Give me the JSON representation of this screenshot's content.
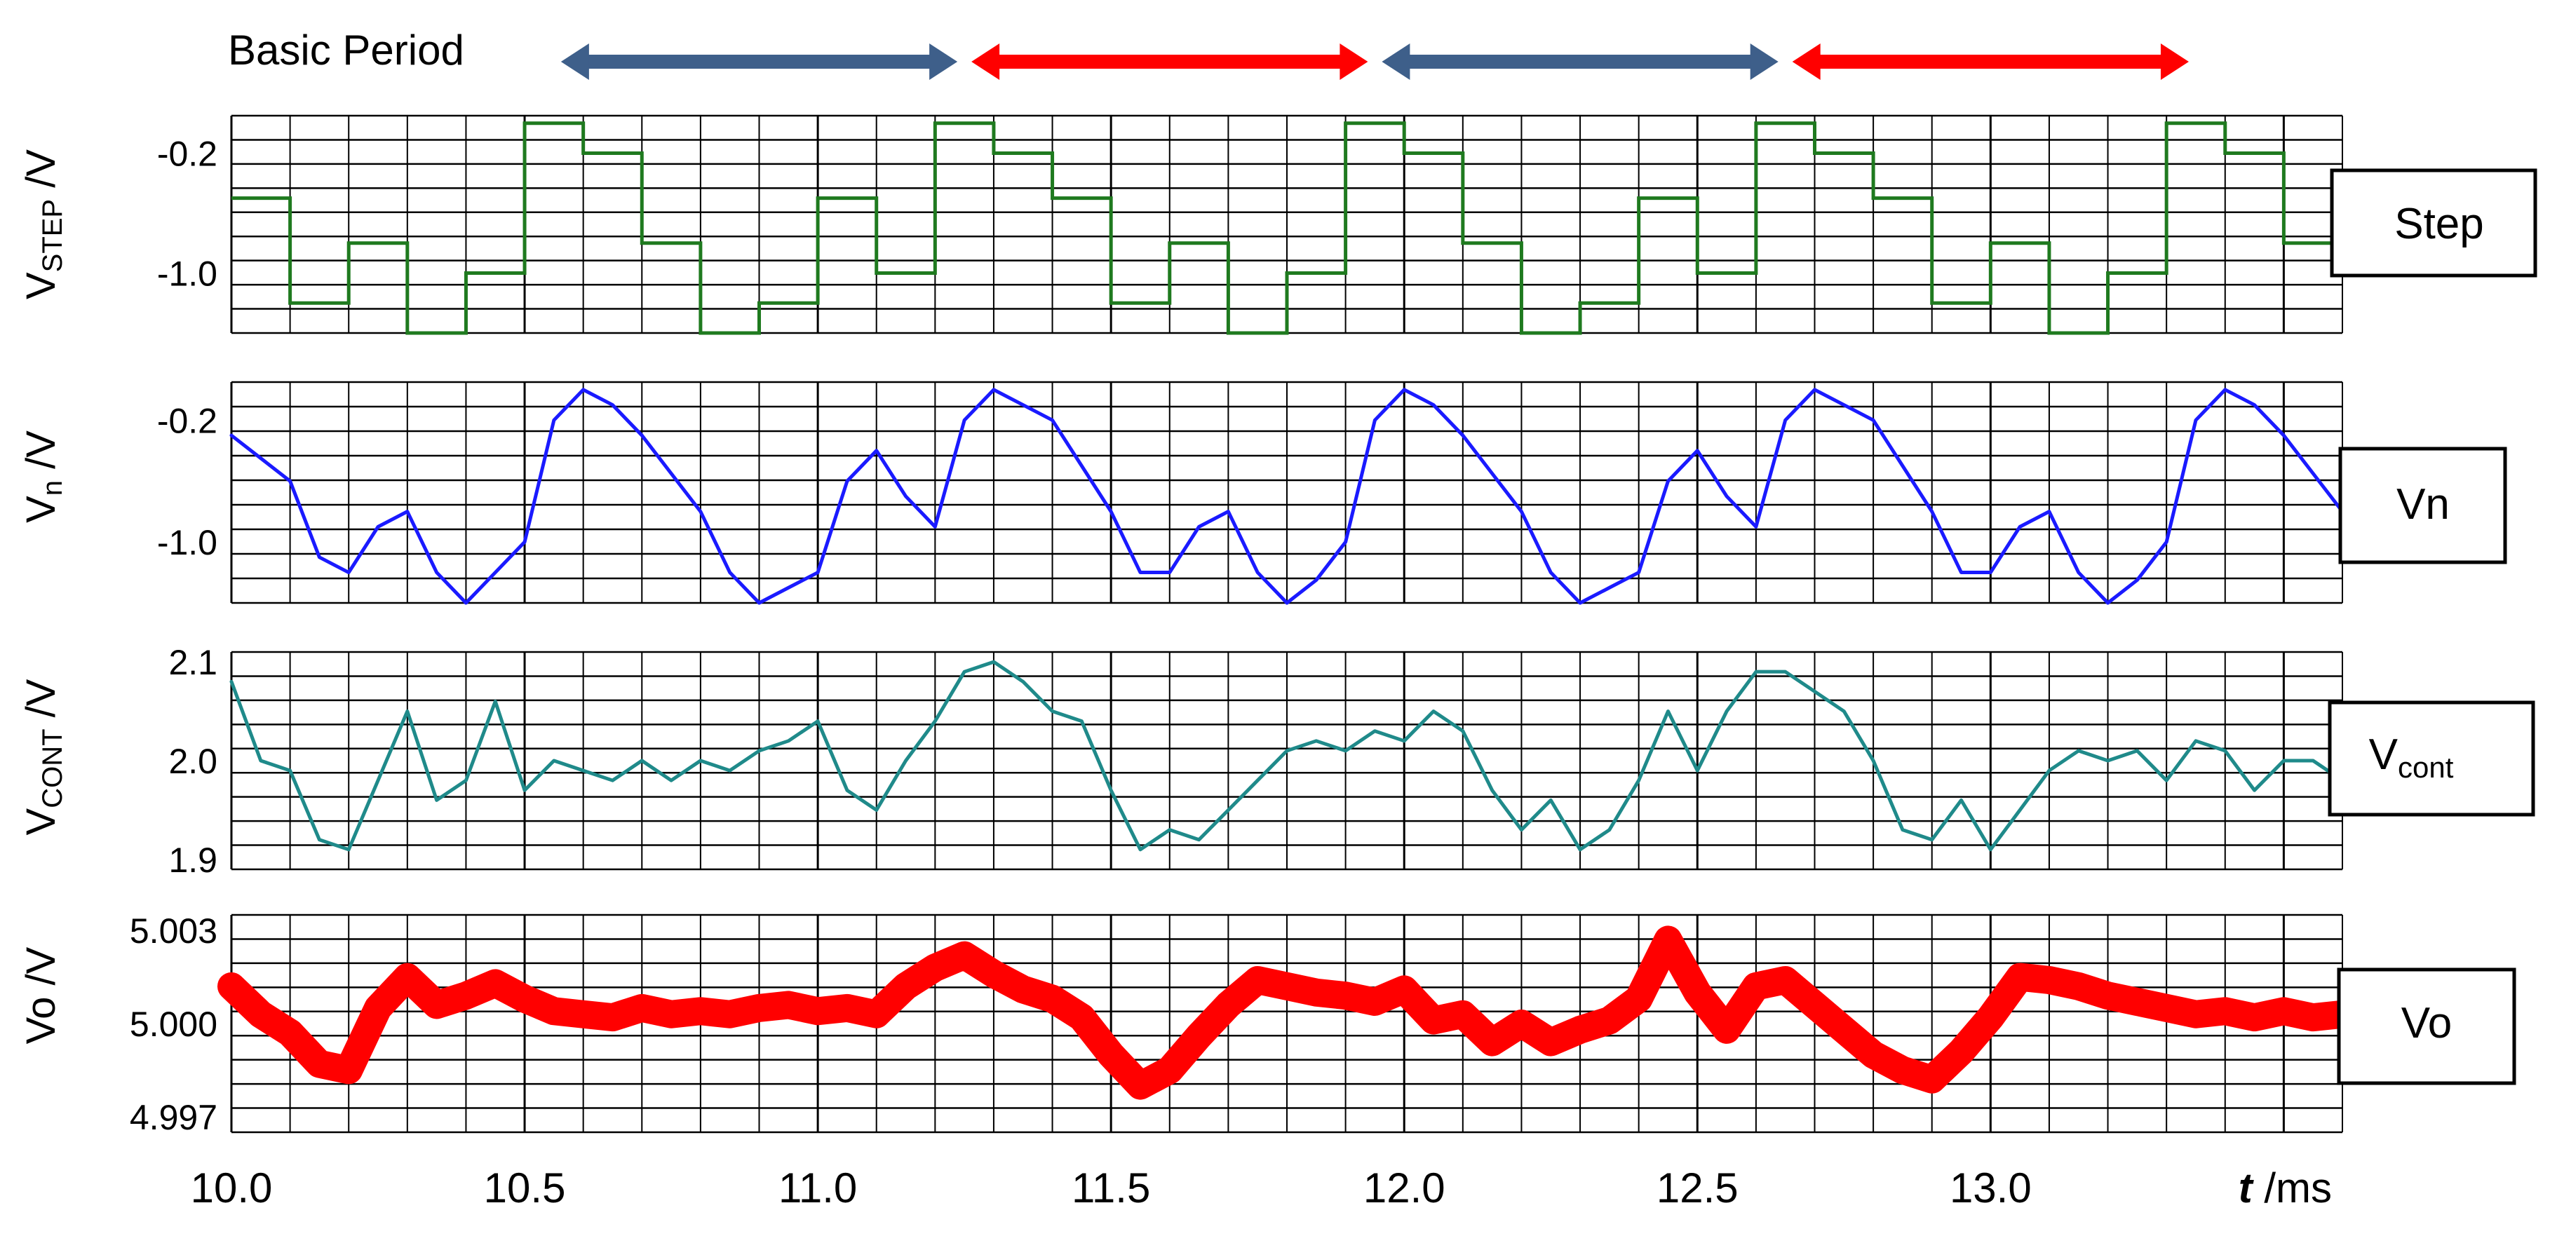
{
  "header": {
    "label": "Basic Period"
  },
  "period_arrows": {
    "segments": [
      {
        "start": 10.55,
        "end": 11.25,
        "color": "#3e5f8a"
      },
      {
        "start": 11.25,
        "end": 11.95,
        "color": "#ff0000"
      },
      {
        "start": 11.95,
        "end": 12.65,
        "color": "#3e5f8a"
      },
      {
        "start": 12.65,
        "end": 13.35,
        "color": "#ff0000"
      }
    ]
  },
  "colors": {
    "step": "#1f7a1f",
    "vn": "#1a1aff",
    "vcont": "#1f8a8a",
    "vo": "#ff0000",
    "grid": "#000000"
  },
  "x_axis": {
    "ticks": [
      "10.0",
      "10.5",
      "11.0",
      "11.5",
      "12.0",
      "12.5",
      "13.0"
    ],
    "tick_values": [
      10.0,
      10.5,
      11.0,
      11.5,
      12.0,
      12.5,
      13.0
    ],
    "label_symbol": "t",
    "label_unit": " /ms"
  },
  "panels": {
    "step": {
      "ylabel_main": "V",
      "ylabel_sub": "STEP",
      "ylabel_unit": " /V",
      "ticks": [
        {
          "label": "-0.2",
          "value": -0.2
        },
        {
          "label": "-1.0",
          "value": -1.0
        }
      ],
      "tag": "Step"
    },
    "vn": {
      "ylabel_main": "V",
      "ylabel_sub": "n",
      "ylabel_unit": " /V",
      "ticks": [
        {
          "label": "-0.2",
          "value": -0.2
        },
        {
          "label": "-1.0",
          "value": -1.0
        }
      ],
      "tag": "Vn"
    },
    "vcont": {
      "ylabel_main": "V",
      "ylabel_sub": "CONT",
      "ylabel_unit": " /V",
      "ticks": [
        {
          "label": "2.1",
          "value": 2.1
        },
        {
          "label": "2.0",
          "value": 2.0
        },
        {
          "label": "1.9",
          "value": 1.9
        }
      ],
      "tag_main": "V",
      "tag_sub": "cont"
    },
    "vo": {
      "ylabel_main": "Vo",
      "ylabel_unit": " /V",
      "ticks": [
        {
          "label": "5.003",
          "value": 5.003
        },
        {
          "label": "5.000",
          "value": 5.0
        },
        {
          "label": "4.997",
          "value": 4.997
        }
      ],
      "tag": "Vo"
    }
  },
  "chart_data": [
    {
      "type": "line",
      "name": "Step",
      "x": [
        10.0,
        10.1,
        10.2,
        10.3,
        10.4,
        10.5,
        10.6,
        10.7,
        10.8,
        10.9,
        11.0,
        11.1,
        11.2,
        11.3,
        11.4,
        11.5,
        11.6,
        11.7,
        11.8,
        11.9,
        12.0,
        12.1,
        12.2,
        12.3,
        12.4,
        12.5,
        12.6,
        12.7,
        12.8,
        12.9,
        13.0,
        13.1,
        13.2,
        13.3,
        13.4,
        13.5
      ],
      "values": [
        -0.5,
        -1.2,
        -0.8,
        -1.4,
        -1.0,
        0.0,
        -0.2,
        -0.8,
        -1.4,
        -1.2,
        -0.5,
        -1.0,
        0.0,
        -0.2,
        -0.5,
        -1.2,
        -0.8,
        -1.4,
        -1.0,
        0.0,
        -0.2,
        -0.8,
        -1.4,
        -1.2,
        -0.5,
        -1.0,
        0.0,
        -0.2,
        -0.5,
        -1.2,
        -0.8,
        -1.4,
        -1.0,
        0.0,
        -0.2,
        -0.8
      ],
      "xlim": [
        10.0,
        13.6
      ],
      "ylim": [
        -1.4,
        0.05
      ]
    },
    {
      "type": "line",
      "name": "Vn",
      "x": [
        10.0,
        10.05,
        10.1,
        10.15,
        10.2,
        10.25,
        10.3,
        10.35,
        10.4,
        10.45,
        10.5,
        10.55,
        10.6,
        10.65,
        10.7,
        10.75,
        10.8,
        10.85,
        10.9,
        10.95,
        11.0,
        11.05,
        11.1,
        11.15,
        11.2,
        11.25,
        11.3,
        11.35,
        11.4,
        11.45,
        11.5,
        11.55,
        11.6,
        11.65,
        11.7,
        11.75,
        11.8,
        11.85,
        11.9,
        11.95,
        12.0,
        12.05,
        12.1,
        12.15,
        12.2,
        12.25,
        12.3,
        12.35,
        12.4,
        12.45,
        12.5,
        12.55,
        12.6,
        12.65,
        12.7,
        12.75,
        12.8,
        12.85,
        12.9,
        12.95,
        13.0,
        13.05,
        13.1,
        13.15,
        13.2,
        13.25,
        13.3,
        13.35,
        13.4,
        13.45,
        13.5,
        13.55,
        13.6
      ],
      "values": [
        -0.3,
        -0.45,
        -0.6,
        -1.1,
        -1.2,
        -0.9,
        -0.8,
        -1.2,
        -1.4,
        -1.2,
        -1.0,
        -0.2,
        0.0,
        -0.1,
        -0.3,
        -0.55,
        -0.8,
        -1.2,
        -1.4,
        -1.3,
        -1.2,
        -0.6,
        -0.4,
        -0.7,
        -0.9,
        -0.2,
        0.0,
        -0.1,
        -0.2,
        -0.5,
        -0.8,
        -1.2,
        -1.2,
        -0.9,
        -0.8,
        -1.2,
        -1.4,
        -1.25,
        -1.0,
        -0.2,
        0.0,
        -0.1,
        -0.3,
        -0.55,
        -0.8,
        -1.2,
        -1.4,
        -1.3,
        -1.2,
        -0.6,
        -0.4,
        -0.7,
        -0.9,
        -0.2,
        0.0,
        -0.1,
        -0.2,
        -0.5,
        -0.8,
        -1.2,
        -1.2,
        -0.9,
        -0.8,
        -1.2,
        -1.4,
        -1.25,
        -1.0,
        -0.2,
        0.0,
        -0.1,
        -0.3,
        -0.55,
        -0.8
      ],
      "xlim": [
        10.0,
        13.6
      ],
      "ylim": [
        -1.4,
        0.05
      ]
    },
    {
      "type": "line",
      "name": "Vcont",
      "x": [
        10.0,
        10.05,
        10.1,
        10.15,
        10.2,
        10.25,
        10.3,
        10.35,
        10.4,
        10.45,
        10.5,
        10.55,
        10.6,
        10.65,
        10.7,
        10.75,
        10.8,
        10.85,
        10.9,
        10.95,
        11.0,
        11.05,
        11.1,
        11.15,
        11.2,
        11.25,
        11.3,
        11.35,
        11.4,
        11.45,
        11.5,
        11.55,
        11.6,
        11.65,
        11.7,
        11.75,
        11.8,
        11.85,
        11.9,
        11.95,
        12.0,
        12.05,
        12.1,
        12.15,
        12.2,
        12.25,
        12.3,
        12.35,
        12.4,
        12.45,
        12.5,
        12.55,
        12.6,
        12.65,
        12.7,
        12.75,
        12.8,
        12.85,
        12.9,
        12.95,
        13.0,
        13.05,
        13.1,
        13.15,
        13.2,
        13.25,
        13.3,
        13.35,
        13.4,
        13.45,
        13.5,
        13.55,
        13.6
      ],
      "values": [
        2.08,
        2.0,
        1.99,
        1.92,
        1.91,
        1.98,
        2.05,
        1.96,
        1.98,
        2.06,
        1.97,
        2.0,
        1.99,
        1.98,
        2.0,
        1.98,
        2.0,
        1.99,
        2.01,
        2.02,
        2.04,
        1.97,
        1.95,
        2.0,
        2.04,
        2.09,
        2.1,
        2.08,
        2.05,
        2.04,
        1.97,
        1.91,
        1.93,
        1.92,
        1.95,
        1.98,
        2.01,
        2.02,
        2.01,
        2.03,
        2.02,
        2.05,
        2.03,
        1.97,
        1.93,
        1.96,
        1.91,
        1.93,
        1.98,
        2.05,
        1.99,
        2.05,
        2.09,
        2.09,
        2.07,
        2.05,
        2.0,
        1.93,
        1.92,
        1.96,
        1.91,
        1.95,
        1.99,
        2.01,
        2.0,
        2.01,
        1.98,
        2.02,
        2.01,
        1.97,
        2.0,
        2.0,
        1.98
      ],
      "xlim": [
        10.0,
        13.6
      ],
      "ylim": [
        1.89,
        2.11
      ]
    },
    {
      "type": "line",
      "name": "Vo",
      "x": [
        10.0,
        10.05,
        10.1,
        10.15,
        10.2,
        10.25,
        10.3,
        10.35,
        10.4,
        10.45,
        10.5,
        10.55,
        10.6,
        10.65,
        10.7,
        10.75,
        10.8,
        10.85,
        10.9,
        10.95,
        11.0,
        11.05,
        11.1,
        11.15,
        11.2,
        11.25,
        11.3,
        11.35,
        11.4,
        11.45,
        11.5,
        11.55,
        11.6,
        11.65,
        11.7,
        11.75,
        11.8,
        11.85,
        11.9,
        11.95,
        12.0,
        12.05,
        12.1,
        12.15,
        12.2,
        12.25,
        12.3,
        12.35,
        12.4,
        12.45,
        12.5,
        12.55,
        12.6,
        12.65,
        12.7,
        12.75,
        12.8,
        12.85,
        12.9,
        12.95,
        13.0,
        13.05,
        13.1,
        13.15,
        13.2,
        13.25,
        13.3,
        13.35,
        13.4,
        13.45,
        13.5,
        13.55,
        13.6
      ],
      "values": [
        5.0012,
        5.0003,
        4.9997,
        4.9987,
        4.9985,
        5.0005,
        5.0015,
        5.0006,
        5.0009,
        5.0013,
        5.0008,
        5.0004,
        5.0003,
        5.0002,
        5.0005,
        5.0003,
        5.0004,
        5.0003,
        5.0005,
        5.0006,
        5.0004,
        5.0005,
        5.0003,
        5.0012,
        5.0018,
        5.0022,
        5.0016,
        5.0011,
        5.0008,
        5.0002,
        4.999,
        4.998,
        4.9985,
        4.9996,
        5.0006,
        5.0014,
        5.0012,
        5.001,
        5.0009,
        5.0007,
        5.0011,
        5.0001,
        5.0003,
        4.9994,
        5.0,
        4.9994,
        4.9998,
        5.0001,
        5.0008,
        5.0027,
        5.001,
        4.9998,
        5.0012,
        5.0014,
        5.0006,
        4.9998,
        4.999,
        4.9985,
        4.9982,
        4.9991,
        5.0002,
        5.0015,
        5.0014,
        5.0012,
        5.0009,
        5.0007,
        5.0005,
        5.0003,
        5.0004,
        5.0002,
        5.0004,
        5.0002,
        5.0003
      ],
      "xlim": [
        10.0,
        13.6
      ],
      "ylim": [
        4.9965,
        5.0035
      ]
    }
  ]
}
